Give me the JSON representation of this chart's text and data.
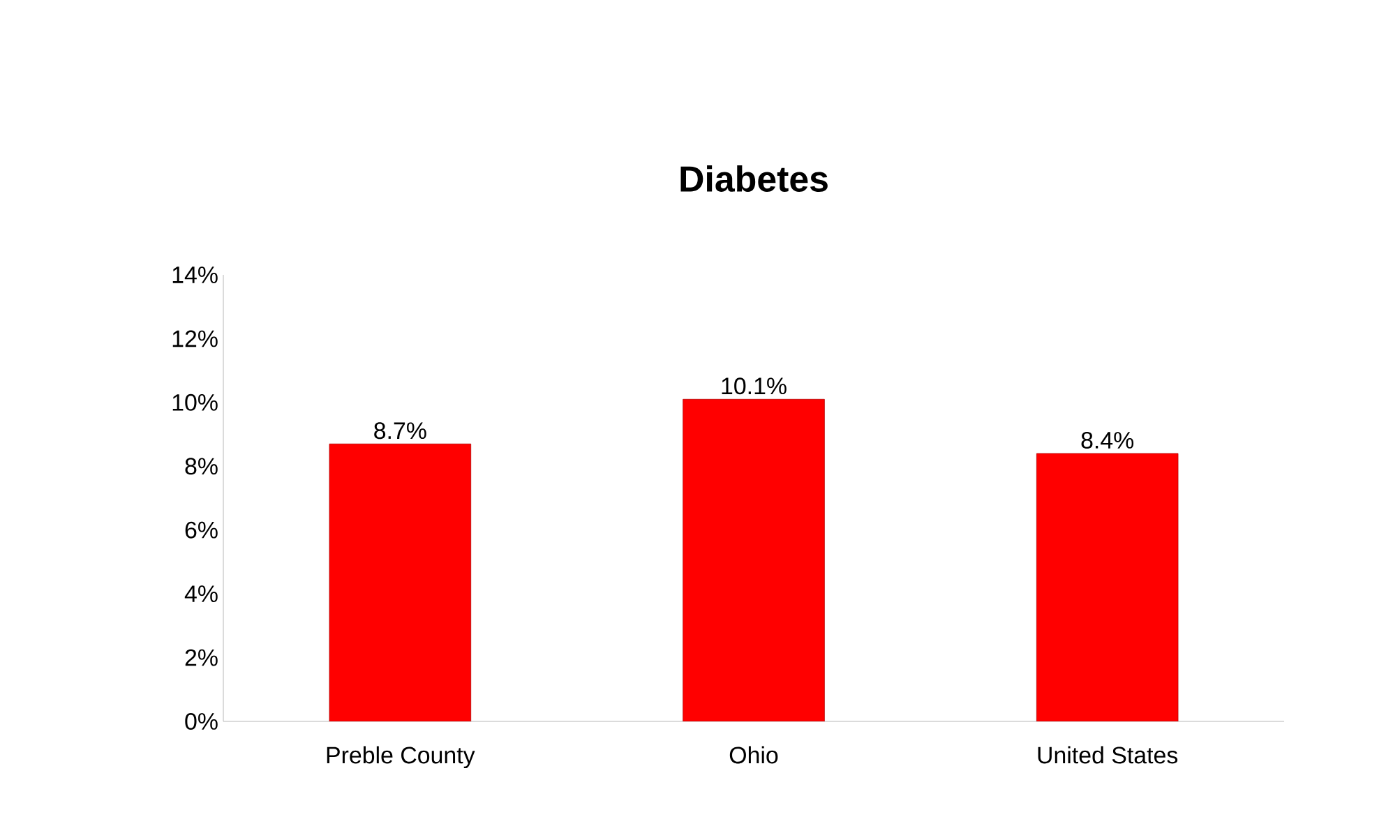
{
  "chart_data": {
    "type": "bar",
    "title": "Diabetes",
    "categories": [
      "Preble County",
      "Ohio",
      "United States"
    ],
    "values": [
      8.7,
      10.1,
      8.4
    ],
    "value_labels": [
      "8.7%",
      "10.1%",
      "8.4%"
    ],
    "color": "#ff0000",
    "ylim": [
      0,
      14
    ],
    "yticks": [
      {
        "value": 0,
        "label": "0%"
      },
      {
        "value": 2,
        "label": "2%"
      },
      {
        "value": 4,
        "label": "4%"
      },
      {
        "value": 6,
        "label": "6%"
      },
      {
        "value": 8,
        "label": "8%"
      },
      {
        "value": 10,
        "label": "10%"
      },
      {
        "value": 12,
        "label": "12%"
      },
      {
        "value": 14,
        "label": "14%"
      }
    ]
  }
}
